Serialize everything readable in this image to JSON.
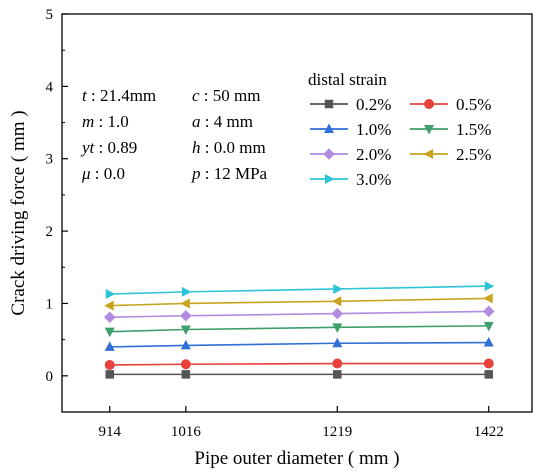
{
  "chart_data": {
    "type": "line",
    "xlabel": "Pipe outer diameter ( mm )",
    "ylabel": "Crack driving force ( mm )",
    "x": [
      914,
      1016,
      1219,
      1422
    ],
    "x_ticks": [
      "914",
      "1016",
      "1219",
      "1422"
    ],
    "xlim": [
      850,
      1480
    ],
    "ylim": [
      -0.5,
      5
    ],
    "y_ticks": [
      "0",
      "1",
      "2",
      "3",
      "4",
      "5"
    ],
    "grid": false,
    "legend_title": "distal strain",
    "legend_position": "top-right",
    "series": [
      {
        "name": "0.2%",
        "values": [
          0.02,
          0.02,
          0.02,
          0.02
        ],
        "color": "#555555",
        "marker": "square"
      },
      {
        "name": "0.5%",
        "values": [
          0.15,
          0.16,
          0.17,
          0.17
        ],
        "color": "#e8413c",
        "marker": "circle"
      },
      {
        "name": "1.0%",
        "values": [
          0.4,
          0.42,
          0.45,
          0.46
        ],
        "color": "#2f6fd6",
        "marker": "triangle-up"
      },
      {
        "name": "1.5%",
        "values": [
          0.61,
          0.64,
          0.67,
          0.69
        ],
        "color": "#3f9f6a",
        "marker": "triangle-down"
      },
      {
        "name": "2.0%",
        "values": [
          0.81,
          0.83,
          0.86,
          0.89
        ],
        "color": "#b18be0",
        "marker": "diamond"
      },
      {
        "name": "2.5%",
        "values": [
          0.97,
          1.0,
          1.03,
          1.07
        ],
        "color": "#c8a41e",
        "marker": "triangle-left"
      },
      {
        "name": "3.0%",
        "values": [
          1.13,
          1.16,
          1.2,
          1.24
        ],
        "color": "#2ec6d6",
        "marker": "triangle-right"
      }
    ],
    "parameters": [
      {
        "label": "t",
        "value": " : 21.4mm"
      },
      {
        "label": "c",
        "value": " : 50 mm"
      },
      {
        "label": "m",
        "value": " : 1.0"
      },
      {
        "label": "a",
        "value": " : 4 mm"
      },
      {
        "label": "yt",
        "value": " : 0.89"
      },
      {
        "label": "h",
        "value": " : 0.0 mm"
      },
      {
        "label": "μ",
        "value": " : 0.0"
      },
      {
        "label": "p",
        "value": " : 12 MPa"
      }
    ]
  }
}
